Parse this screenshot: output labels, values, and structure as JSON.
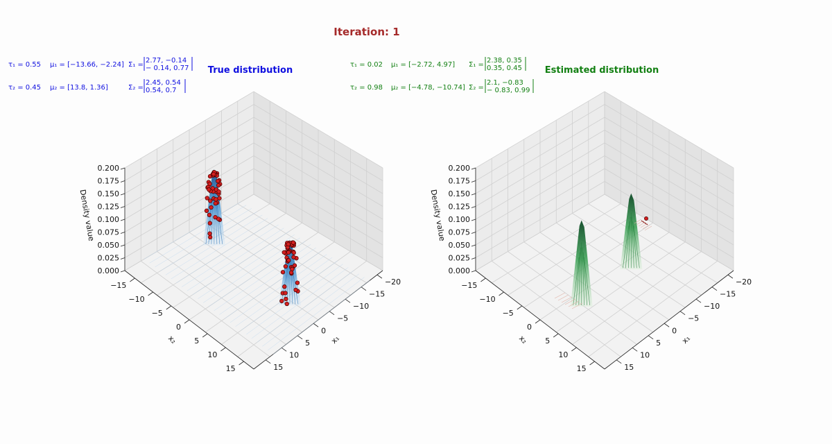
{
  "figure": {
    "title": "Iteration: 1",
    "title_color": "#a52a2a"
  },
  "true_params": {
    "color": "#1010e0",
    "tau1": "τ₁ = 0.55",
    "mu1": "μ₁ = [−13.66,  −2.24]",
    "sigma1_label": "Σ₁ =",
    "sigma1_row1": "2.77, −0.14",
    "sigma1_row2": "− 0.14, 0.77",
    "tau2": "τ₂ = 0.45",
    "mu2": "μ₂ = [13.8, 1.36]",
    "sigma2_label": "Σ₂ =",
    "sigma2_row1": "2.45, 0.54",
    "sigma2_row2": "0.54, 0.7"
  },
  "est_params": {
    "color": "#138013",
    "tau1": "τ₁ = 0.02",
    "mu1": "μ₁ = [−2.72, 4.97]",
    "sigma1_label": "Σ₁ =",
    "sigma1_row1": "2.38, 0.35",
    "sigma1_row2": "0.35, 0.45",
    "tau2": "τ₂ = 0.98",
    "mu2": "μ₂ = [−4.78, −10.74]",
    "sigma2_label": "Σ₂ =",
    "sigma2_row1": "2.1, −0.83",
    "sigma2_row2": "− 0.83, 0.99"
  },
  "chart_data": [
    {
      "type": "surface3d",
      "title": "True distribution",
      "title_color": "#1010e0",
      "xlabel": "x₁",
      "ylabel": "x₂",
      "zlabel": "Density value",
      "xlim": [
        -20,
        20
      ],
      "ylim": [
        -18,
        18
      ],
      "zlim": [
        0,
        0.2
      ],
      "x_ticks": [
        "−20",
        "−15",
        "−10",
        "−5",
        "0",
        "5",
        "10",
        "15"
      ],
      "y_ticks": [
        "−15",
        "−10",
        "−5",
        "0",
        "5",
        "10",
        "15"
      ],
      "z_ticks": [
        "0.000",
        "0.025",
        "0.050",
        "0.075",
        "0.100",
        "0.125",
        "0.150",
        "0.175",
        "0.200"
      ],
      "surface_colormap": "Blues",
      "peaks": [
        {
          "mu": [
            -13.66,
            -2.24
          ],
          "peak_density": 0.12
        },
        {
          "mu": [
            13.8,
            1.36
          ],
          "peak_density": 0.14
        }
      ],
      "points_color": "#d42020",
      "points_note": "samples drawn on density surface"
    },
    {
      "type": "surface3d",
      "title": "Estimated distribution",
      "title_color": "#138013",
      "xlabel": "x₁",
      "ylabel": "x₂",
      "zlabel": "Density value",
      "xlim": [
        -20,
        20
      ],
      "ylim": [
        -18,
        18
      ],
      "zlim": [
        0,
        0.2
      ],
      "x_ticks": [
        "−20",
        "−15",
        "−10",
        "−5",
        "0",
        "5",
        "10",
        "15"
      ],
      "y_ticks": [
        "−15",
        "−10",
        "−5",
        "0",
        "5",
        "10",
        "15"
      ],
      "z_ticks": [
        "0.000",
        "0.025",
        "0.050",
        "0.075",
        "0.100",
        "0.125",
        "0.150",
        "0.175",
        "0.200"
      ],
      "surface_colormap": "Greens",
      "peaks": [
        {
          "mu": [
            -2.72,
            4.97
          ],
          "peak_density": 0.14
        },
        {
          "mu": [
            -4.78,
            -10.74
          ],
          "peak_density": 0.16
        }
      ],
      "points_color": "#d42020"
    }
  ]
}
